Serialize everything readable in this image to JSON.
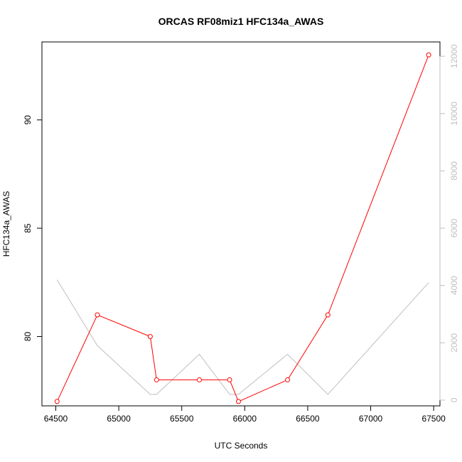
{
  "chart_data": {
    "type": "line",
    "title": "ORCAS RF08miz1 HFC134a_AWAS",
    "xlabel": "UTC Seconds",
    "ylabel": "HFC134a_AWAS",
    "y2label": "",
    "xlim": [
      64390,
      67550
    ],
    "ylim": [
      76.8,
      93.6
    ],
    "y2lim": [
      -200,
      12500
    ],
    "x_ticks": [
      64500,
      65000,
      65500,
      66000,
      66500,
      67000,
      67500
    ],
    "y_ticks": [
      80,
      85,
      90
    ],
    "y2_ticks": [
      0,
      2000,
      4000,
      6000,
      8000,
      10000,
      12000
    ],
    "grid": false,
    "series": [
      {
        "color": "#ff0000",
        "axis": "left",
        "markers": true,
        "points": [
          {
            "x": 64510,
            "y": 77.0
          },
          {
            "x": 64830,
            "y": 81.0
          },
          {
            "x": 65250,
            "y": 80.0
          },
          {
            "x": 65300,
            "y": 78.0
          },
          {
            "x": 65640,
            "y": 78.0
          },
          {
            "x": 65880,
            "y": 78.0
          },
          {
            "x": 65950,
            "y": 77.0
          },
          {
            "x": 66340,
            "y": 78.0
          },
          {
            "x": 66660,
            "y": 81.0
          },
          {
            "x": 67460,
            "y": 93.0
          }
        ]
      },
      {
        "color": "#bfbfbf",
        "axis": "right",
        "markers": false,
        "points": [
          {
            "x": 64510,
            "y": 4200
          },
          {
            "x": 64830,
            "y": 1900
          },
          {
            "x": 65250,
            "y": 200
          },
          {
            "x": 65300,
            "y": 200
          },
          {
            "x": 65640,
            "y": 1600
          },
          {
            "x": 65880,
            "y": 200
          },
          {
            "x": 65950,
            "y": 200
          },
          {
            "x": 66340,
            "y": 1600
          },
          {
            "x": 66660,
            "y": 200
          },
          {
            "x": 67460,
            "y": 4100
          }
        ]
      }
    ]
  }
}
